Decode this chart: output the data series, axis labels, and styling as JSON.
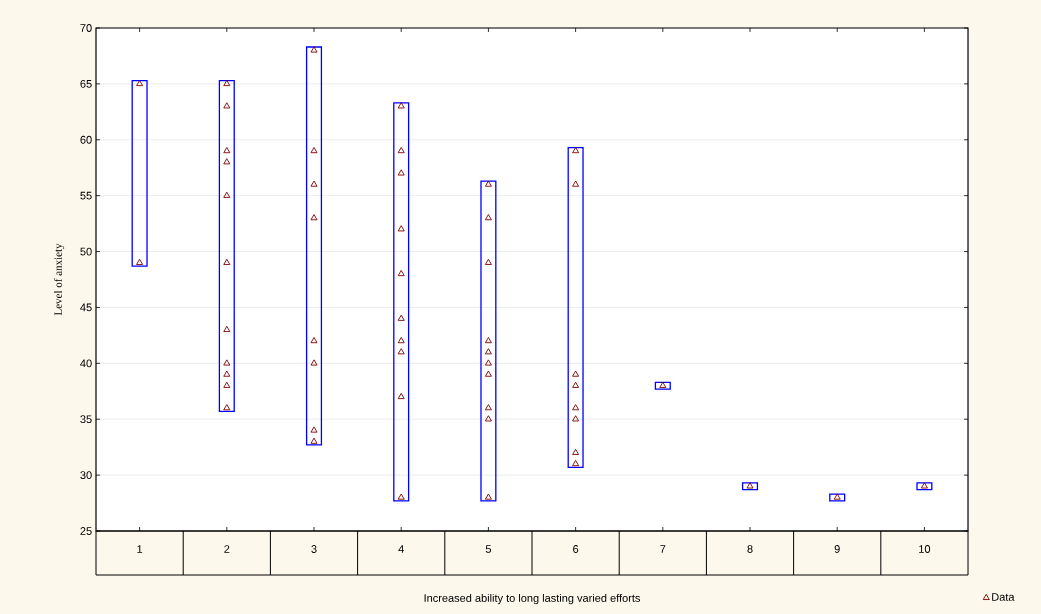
{
  "chart_data": {
    "type": "bar",
    "xlabel": "Increased ability to long lasting varied efforts",
    "ylabel": "Level of anxiety",
    "categories": [
      "1",
      "2",
      "3",
      "4",
      "5",
      "6",
      "7",
      "8",
      "9",
      "10"
    ],
    "ylim": [
      25,
      70
    ],
    "yticks": [
      25,
      30,
      35,
      40,
      45,
      50,
      55,
      60,
      65,
      70
    ],
    "grid": "y",
    "legend": "bottom right",
    "series": [
      {
        "color": "#0000ff",
        "base": [
          48.7,
          35.7,
          32.7,
          27.7,
          27.7,
          30.7,
          37.7,
          28.7,
          27.7,
          28.7
        ],
        "values": [
          16.6,
          29.6,
          35.6,
          35.6,
          28.6,
          28.6,
          0.6,
          0.6,
          0.6,
          0.6
        ]
      },
      {
        "type": "scatter",
        "name": "Data",
        "color": "#800000",
        "marker": "triangle",
        "x": [
          "1",
          "1",
          "2",
          "2",
          "2",
          "2",
          "2",
          "2",
          "2",
          "2",
          "2",
          "2",
          "2",
          "3",
          "3",
          "3",
          "3",
          "3",
          "3",
          "3",
          "3",
          "4",
          "4",
          "4",
          "4",
          "4",
          "4",
          "4",
          "4",
          "4",
          "4",
          "5",
          "5",
          "5",
          "5",
          "5",
          "5",
          "5",
          "5",
          "5",
          "5",
          "6",
          "6",
          "6",
          "6",
          "6",
          "6",
          "6",
          "6",
          "7",
          "8",
          "9",
          "10"
        ],
        "values": [
          65,
          49,
          65,
          63,
          59,
          58,
          55,
          49,
          43,
          40,
          39,
          38,
          36,
          68,
          59,
          56,
          53,
          42,
          40,
          34,
          33,
          63,
          59,
          57,
          52,
          48,
          44,
          42,
          41,
          37,
          28,
          56,
          53,
          49,
          42,
          41,
          40,
          39,
          36,
          35,
          28,
          59,
          56,
          39,
          38,
          36,
          35,
          32,
          31,
          38,
          29,
          28,
          29
        ]
      }
    ]
  }
}
